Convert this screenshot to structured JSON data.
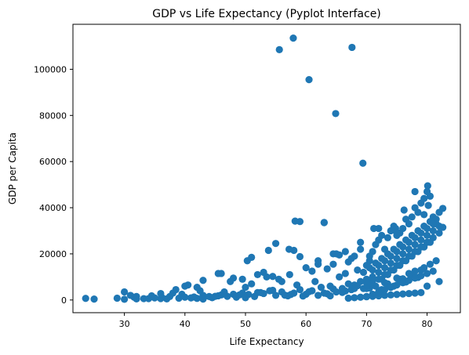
{
  "chart_data": {
    "type": "scatter",
    "title": "GDP vs Life Expectancy (Pyplot Interface)",
    "xlabel": "Life Expectancy",
    "ylabel": "GDP per Capita",
    "xlim": [
      21.5,
      85.5
    ],
    "ylim": [
      -5500,
      119500
    ],
    "xticks": [
      30,
      40,
      50,
      60,
      70,
      80
    ],
    "yticks": [
      0,
      20000,
      40000,
      60000,
      80000,
      100000
    ],
    "xtick_labels": [
      "30",
      "40",
      "50",
      "60",
      "70",
      "80"
    ],
    "ytick_labels": [
      "0",
      "20000",
      "40000",
      "60000",
      "80000",
      "100000"
    ],
    "grid": false,
    "marker_color": "#1f77b4",
    "series": [
      {
        "x": [
          23.6,
          28.8,
          30.0,
          31.6,
          33.2,
          35.0,
          36.2,
          37.5,
          39.0,
          40.0,
          41.0,
          43.0,
          44.0,
          45.5,
          46.0,
          47.0,
          48.0,
          49.5,
          50.5,
          52.0,
          53.0,
          54.0,
          56.0,
          58.0,
          59.0,
          61.0,
          62.5,
          64.0,
          66.0,
          67.0,
          68.0,
          69.0,
          70.0,
          71.0,
          72.0,
          73.0,
          74.0,
          75.0,
          76.0,
          77.0,
          78.0,
          79.0,
          80.0,
          81.0,
          82.0,
          25.0,
          32.0,
          34.0,
          37.0,
          42.0,
          44.5,
          48.5,
          51.5,
          55.0,
          57.0,
          60.0,
          63.0,
          65.0,
          67.5,
          69.5,
          71.5,
          73.5,
          75.5,
          77.5,
          79.5,
          81.5,
          31.0,
          34.5,
          36.0,
          38.0,
          39.5,
          41.5,
          42.5,
          45.0,
          46.5,
          49.0,
          50.0,
          51.0,
          52.5,
          54.5,
          55.5,
          57.5,
          58.5,
          60.5,
          61.5,
          63.5,
          64.5,
          65.5,
          66.5,
          68.5,
          70.5,
          71.0,
          72.5,
          73.0,
          74.5,
          75.0,
          76.5,
          77.0,
          78.5,
          79.0,
          80.5,
          30.0,
          32.0,
          36.0,
          38.5,
          40.5,
          43.0,
          46.0,
          47.5,
          50.0,
          53.0,
          56.5,
          59.5,
          62.0,
          64.0,
          66.0,
          68.0,
          70.0,
          72.0,
          74.0,
          76.0,
          78.0,
          80.0,
          82.0,
          40.0,
          42.0,
          43.0,
          45.5,
          46.5,
          48.0,
          49.5,
          50.3,
          51.0,
          52.0,
          53.5,
          54.5,
          55.0,
          56.0,
          57.3,
          58.0,
          59.0,
          60.0,
          61.0,
          62.0,
          63.0,
          64.5,
          65.5,
          66.5,
          67.5,
          68.0,
          69.0,
          70.0,
          70.5,
          71.0,
          71.5,
          72.0,
          72.5,
          73.0,
          73.5,
          74.0,
          74.5,
          75.0,
          75.5,
          76.0,
          76.5,
          77.0,
          77.5,
          78.0,
          78.5,
          79.0,
          79.5,
          80.0,
          80.5,
          81.0,
          81.5,
          82.0,
          82.6,
          69.5,
          70.5,
          71.5,
          72.5,
          73.5,
          74.5,
          75.5,
          76.5,
          77.5,
          78.5,
          79.5,
          80.5,
          81.5,
          70.0,
          71.0,
          72.0,
          73.0,
          74.0,
          75.0,
          76.0,
          77.0,
          78.0,
          79.0,
          80.0,
          81.0,
          82.0,
          71.0,
          72.0,
          73.0,
          74.0,
          75.0,
          76.0,
          77.0,
          78.0,
          79.0,
          80.0,
          81.0,
          72.5,
          73.5,
          74.5,
          75.5,
          76.5,
          77.5,
          78.5,
          79.5,
          80.5,
          70.0,
          71.0,
          72.0,
          73.0,
          74.0,
          75.0,
          76.0,
          77.0,
          78.0,
          79.0,
          80.0,
          81.0,
          67.0,
          68.0,
          69.0,
          70.0,
          71.0,
          72.0,
          73.0,
          74.0,
          75.0,
          76.0,
          77.0,
          78.0,
          79.0,
          55.6,
          57.9,
          67.6,
          60.5,
          64.9,
          69.4,
          58.2,
          63.0,
          53.8,
          57.2,
          59.0,
          62.0,
          64.5,
          63.5,
          65.0,
          66.5,
          68.5,
          67.0,
          70.5,
          69.0,
          78.0,
          79.5,
          80.1,
          80.2,
          82.6,
          76.2,
          74.8,
          72.0,
          71.2,
          75.0
        ],
        "y": [
          700,
          800,
          3500,
          1200,
          600,
          900,
          1100,
          1500,
          800,
          1200,
          900,
          2000,
          1500,
          1800,
          2200,
          1600,
          2500,
          3000,
          2400,
          3200,
          2800,
          4000,
          3500,
          3000,
          4500,
          4000,
          5500,
          6000,
          5000,
          7000,
          6500,
          8000,
          9000,
          10000,
          12000,
          14000,
          16000,
          18000,
          20000,
          22000,
          24000,
          26000,
          28000,
          30000,
          32000,
          400,
          1500,
          600,
          500,
          700,
          1000,
          1200,
          1500,
          2000,
          1800,
          2500,
          3000,
          3500,
          4500,
          5000,
          6000,
          7000,
          9000,
          11000,
          14000,
          17000,
          2000,
          1800,
          600,
          3000,
          2500,
          1300,
          4000,
          1600,
          3500,
          2200,
          5500,
          7000,
          3200,
          4200,
          9000,
          2400,
          6500,
          3600,
          8000,
          2700,
          4800,
          10000,
          3900,
          6200,
          5200,
          8500,
          4500,
          7500,
          6000,
          9500,
          7800,
          11500,
          9800,
          13000,
          15500,
          300,
          500,
          2800,
          4500,
          6500,
          400,
          11500,
          8000,
          1000,
          12000,
          2100,
          1700,
          2000,
          1800,
          3300,
          5000,
          7500,
          3400,
          5500,
          9200,
          12500,
          6000,
          8000,
          6000,
          5500,
          8500,
          11500,
          3300,
          9500,
          9000,
          17000,
          18500,
          11000,
          10000,
          10200,
          24500,
          8000,
          11000,
          21500,
          34000,
          14000,
          12500,
          15500,
          33500,
          20000,
          19500,
          21000,
          18000,
          19000,
          22000,
          15000,
          17000,
          21000,
          24000,
          26000,
          28000,
          22000,
          27000,
          30000,
          32000,
          28000,
          29000,
          31000,
          35000,
          33000,
          36000,
          40000,
          38000,
          42000,
          37000,
          47000,
          45000,
          36000,
          35000,
          38000,
          31500,
          12000,
          14000,
          16000,
          18000,
          20000,
          22000,
          24000,
          26000,
          28000,
          30000,
          32000,
          34000,
          33000,
          5000,
          7000,
          9000,
          11000,
          13000,
          15000,
          17000,
          19000,
          21000,
          23000,
          25000,
          27000,
          29000,
          13000,
          15000,
          17000,
          19000,
          21000,
          23000,
          25000,
          27000,
          29000,
          31000,
          33000,
          9000,
          11000,
          13000,
          15000,
          17000,
          19000,
          21000,
          23000,
          25000,
          1500,
          2500,
          3500,
          4500,
          5500,
          6500,
          7500,
          8500,
          9500,
          10500,
          11500,
          12500,
          800,
          1000,
          1200,
          1400,
          1600,
          1800,
          2000,
          2200,
          2400,
          2600,
          2800,
          3000,
          3200,
          108500,
          113500,
          109500,
          95500,
          80800,
          59300,
          34200,
          33600,
          21500,
          22000,
          18800,
          17000,
          15500,
          13500,
          20000,
          11500,
          13000,
          16500,
          19000,
          25000,
          47000,
          44000,
          49500,
          41000,
          39700,
          39000,
          31000,
          31000,
          31000,
          29000
        ]
      }
    ]
  }
}
